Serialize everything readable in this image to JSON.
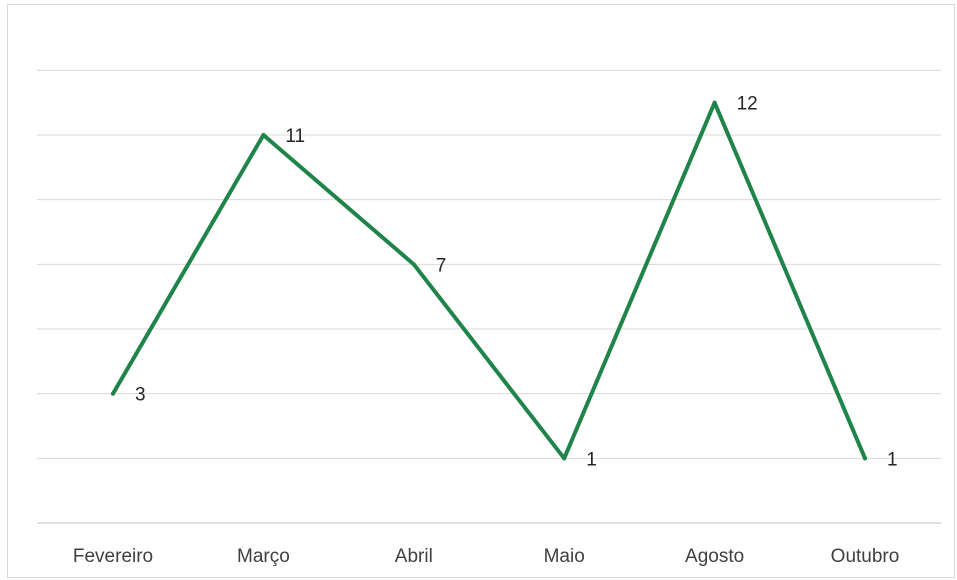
{
  "chart_data": {
    "type": "line",
    "title": "",
    "xlabel": "",
    "ylabel": "",
    "categories": [
      "Fevereiro",
      "Março",
      "Abril",
      "Maio",
      "Agosto",
      "Outubro"
    ],
    "series": [
      {
        "values": [
          3,
          11,
          7,
          1,
          12,
          1
        ]
      }
    ],
    "data_labels": [
      "3",
      "11",
      "7",
      "1",
      "12",
      "1"
    ],
    "ylim": [
      -1,
      14
    ],
    "y_gridline_step": 2,
    "y_axis_labels_visible": false,
    "grid": true,
    "legend": "none",
    "colors": {
      "line": "#1e8449",
      "gridline": "#d9d9d9",
      "axis": "#bfbfbf",
      "border": "#d9d9d9"
    }
  }
}
